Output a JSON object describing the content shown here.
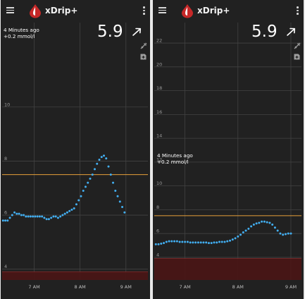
{
  "phones": [
    {
      "app_title": "xDrip+",
      "status_time_ago": "4 Minutes ago",
      "status_delta": "+0.2 mmol/l",
      "bg_value": "5.9",
      "trend_icon": "arrow-up-right-icon",
      "chart_data": {
        "type": "scatter",
        "y_ticks": [
          "4",
          "6",
          "8",
          "10"
        ],
        "y_tick_values": [
          4,
          6,
          8,
          10
        ],
        "ylim": [
          3.6,
          12.5
        ],
        "x_ticks": [
          "7 AM",
          "8 AM",
          "9 AM"
        ],
        "x_tick_values": [
          7,
          8,
          9
        ],
        "xlim": [
          6.3,
          9.48
        ],
        "high_line": 7.5,
        "low_band_top": 3.9,
        "series": [
          {
            "x": [
              6.32,
              6.37,
              6.42,
              6.47,
              6.52,
              6.57,
              6.62,
              6.67,
              6.72,
              6.77,
              6.82,
              6.87,
              6.92,
              6.97,
              7.02,
              7.07,
              7.12,
              7.17,
              7.22,
              7.27,
              7.32,
              7.37,
              7.42,
              7.47,
              7.52,
              7.57,
              7.62,
              7.67,
              7.72,
              7.77,
              7.82,
              7.87,
              7.92,
              7.97,
              8.02,
              8.07,
              8.12,
              8.17,
              8.22,
              8.27,
              8.32,
              8.37,
              8.42,
              8.47,
              8.52,
              8.57,
              8.62,
              8.67,
              8.72,
              8.77,
              8.82,
              8.87,
              8.92,
              8.97
            ],
            "y": [
              5.8,
              5.8,
              5.8,
              5.9,
              6.0,
              6.1,
              6.05,
              6.05,
              6.0,
              6.0,
              5.95,
              5.95,
              5.95,
              5.95,
              5.95,
              5.95,
              5.95,
              5.95,
              5.9,
              5.85,
              5.85,
              5.9,
              5.95,
              5.95,
              5.9,
              5.95,
              6.0,
              6.05,
              6.1,
              6.15,
              6.2,
              6.25,
              6.4,
              6.55,
              6.7,
              6.9,
              7.05,
              7.2,
              7.35,
              7.5,
              7.7,
              7.9,
              8.05,
              8.15,
              8.2,
              8.1,
              7.8,
              7.5,
              7.2,
              6.9,
              6.7,
              6.5,
              6.3,
              6.1
            ],
            "color": "#42aef0"
          }
        ]
      }
    },
    {
      "app_title": "xDrip+",
      "status_time_ago": "4 Minutes ago",
      "status_delta": "+0.2 mmol/l",
      "bg_value": "5.9",
      "trend_icon": "arrow-up-right-icon",
      "chart_data": {
        "type": "scatter",
        "y_ticks": [
          "4",
          "6",
          "8",
          "10",
          "12",
          "14",
          "16",
          "18",
          "20",
          "22"
        ],
        "y_tick_values": [
          4,
          6,
          8,
          10,
          12,
          14,
          16,
          18,
          20,
          22
        ],
        "ylim": [
          2.1,
          22.3
        ],
        "x_ticks": [
          "7 AM",
          "8 AM",
          "9 AM"
        ],
        "x_tick_values": [
          7,
          8,
          9
        ],
        "xlim": [
          6.42,
          9.2
        ],
        "high_line": 7.5,
        "low_band_top": 3.9,
        "series": [
          {
            "x": [
              6.45,
              6.5,
              6.55,
              6.6,
              6.65,
              6.7,
              6.75,
              6.8,
              6.85,
              6.9,
              6.95,
              7.0,
              7.05,
              7.1,
              7.15,
              7.2,
              7.25,
              7.3,
              7.35,
              7.4,
              7.45,
              7.5,
              7.55,
              7.6,
              7.65,
              7.7,
              7.75,
              7.8,
              7.85,
              7.9,
              7.95,
              8.0,
              8.05,
              8.1,
              8.15,
              8.2,
              8.25,
              8.3,
              8.35,
              8.4,
              8.45,
              8.5,
              8.55,
              8.6,
              8.65,
              8.7,
              8.75,
              8.8,
              8.85,
              8.9,
              8.95,
              9.0
            ],
            "y": [
              5.1,
              5.1,
              5.15,
              5.2,
              5.3,
              5.35,
              5.35,
              5.35,
              5.35,
              5.3,
              5.3,
              5.3,
              5.3,
              5.25,
              5.25,
              5.25,
              5.25,
              5.25,
              5.25,
              5.25,
              5.2,
              5.2,
              5.25,
              5.25,
              5.3,
              5.3,
              5.3,
              5.35,
              5.4,
              5.5,
              5.6,
              5.75,
              5.9,
              6.1,
              6.25,
              6.4,
              6.6,
              6.75,
              6.85,
              6.9,
              7.0,
              7.0,
              6.95,
              6.9,
              6.75,
              6.5,
              6.25,
              6.0,
              5.9,
              5.95,
              6.0,
              6.0
            ],
            "color": "#42aef0"
          }
        ]
      }
    }
  ]
}
